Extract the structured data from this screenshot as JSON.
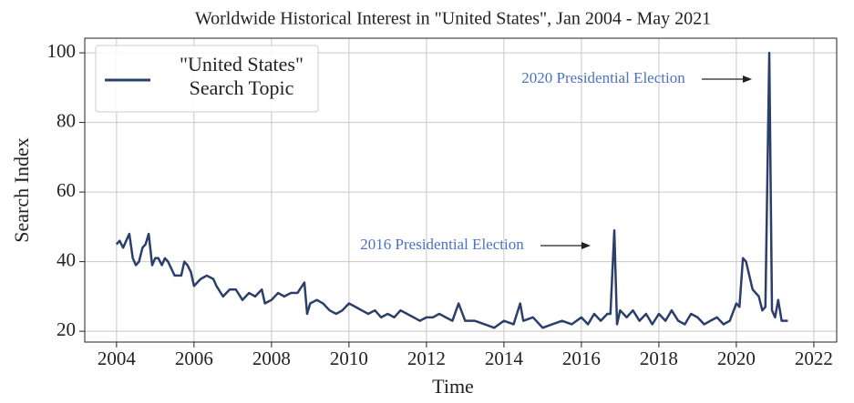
{
  "chart_data": {
    "type": "line",
    "title": "Worldwide Historical Interest in \"United States\", Jan 2004 - May 2021",
    "xlabel": "Time",
    "ylabel": "Search Index",
    "x": [
      2004.0,
      2004.08,
      2004.17,
      2004.25,
      2004.33,
      2004.42,
      2004.5,
      2004.58,
      2004.67,
      2004.75,
      2004.83,
      2004.92,
      2005.0,
      2005.08,
      2005.17,
      2005.25,
      2005.33,
      2005.5,
      2005.67,
      2005.75,
      2005.83,
      2005.92,
      2006.0,
      2006.17,
      2006.33,
      2006.5,
      2006.58,
      2006.75,
      2006.92,
      2007.08,
      2007.25,
      2007.42,
      2007.58,
      2007.75,
      2007.83,
      2008.0,
      2008.17,
      2008.33,
      2008.5,
      2008.67,
      2008.85,
      2008.92,
      2009.0,
      2009.17,
      2009.33,
      2009.5,
      2009.67,
      2009.83,
      2010.0,
      2010.17,
      2010.33,
      2010.5,
      2010.67,
      2010.83,
      2011.0,
      2011.17,
      2011.33,
      2011.5,
      2011.67,
      2011.83,
      2012.0,
      2012.17,
      2012.33,
      2012.5,
      2012.67,
      2012.83,
      2013.0,
      2013.25,
      2013.5,
      2013.75,
      2014.0,
      2014.25,
      2014.42,
      2014.5,
      2014.75,
      2015.0,
      2015.25,
      2015.5,
      2015.75,
      2016.0,
      2016.17,
      2016.33,
      2016.5,
      2016.67,
      2016.75,
      2016.85,
      2016.92,
      2017.0,
      2017.17,
      2017.33,
      2017.5,
      2017.67,
      2017.83,
      2018.0,
      2018.17,
      2018.33,
      2018.5,
      2018.67,
      2018.83,
      2019.0,
      2019.17,
      2019.33,
      2019.5,
      2019.67,
      2019.83,
      2020.0,
      2020.08,
      2020.17,
      2020.25,
      2020.42,
      2020.58,
      2020.67,
      2020.75,
      2020.85,
      2020.92,
      2021.0,
      2021.08,
      2021.17,
      2021.33
    ],
    "series": [
      {
        "name": "\"United States\" Search Topic",
        "color": "#2b3f6b",
        "values": [
          45,
          46,
          44,
          46,
          48,
          41,
          39,
          40,
          44,
          45,
          48,
          39,
          41,
          41,
          39,
          41,
          40,
          36,
          36,
          40,
          39,
          37,
          33,
          35,
          36,
          35,
          33,
          30,
          32,
          32,
          29,
          31,
          30,
          32,
          28,
          29,
          31,
          30,
          31,
          31,
          34,
          25,
          28,
          29,
          28,
          26,
          25,
          26,
          28,
          27,
          26,
          25,
          26,
          24,
          25,
          24,
          26,
          25,
          24,
          23,
          24,
          24,
          25,
          24,
          23,
          28,
          23,
          23,
          22,
          21,
          23,
          22,
          28,
          23,
          24,
          21,
          22,
          23,
          22,
          24,
          22,
          25,
          23,
          25,
          25,
          49,
          22,
          26,
          24,
          26,
          23,
          25,
          22,
          25,
          23,
          26,
          23,
          22,
          25,
          24,
          22,
          23,
          24,
          22,
          23,
          28,
          27,
          41,
          40,
          32,
          30,
          26,
          27,
          100,
          26,
          24,
          29,
          23,
          23
        ]
      }
    ],
    "annotations": [
      "2020 Presidential Election",
      "2016 Presidential Election"
    ],
    "xlim": [
      2003.18,
      2022.59
    ],
    "xticks": [
      2004,
      2006,
      2008,
      2010,
      2012,
      2014,
      2016,
      2018,
      2020,
      2022
    ],
    "ylim": [
      16.9,
      104.2
    ],
    "yticks": [
      20,
      40,
      60,
      80,
      100
    ],
    "grid": true,
    "legend": "upper left"
  }
}
